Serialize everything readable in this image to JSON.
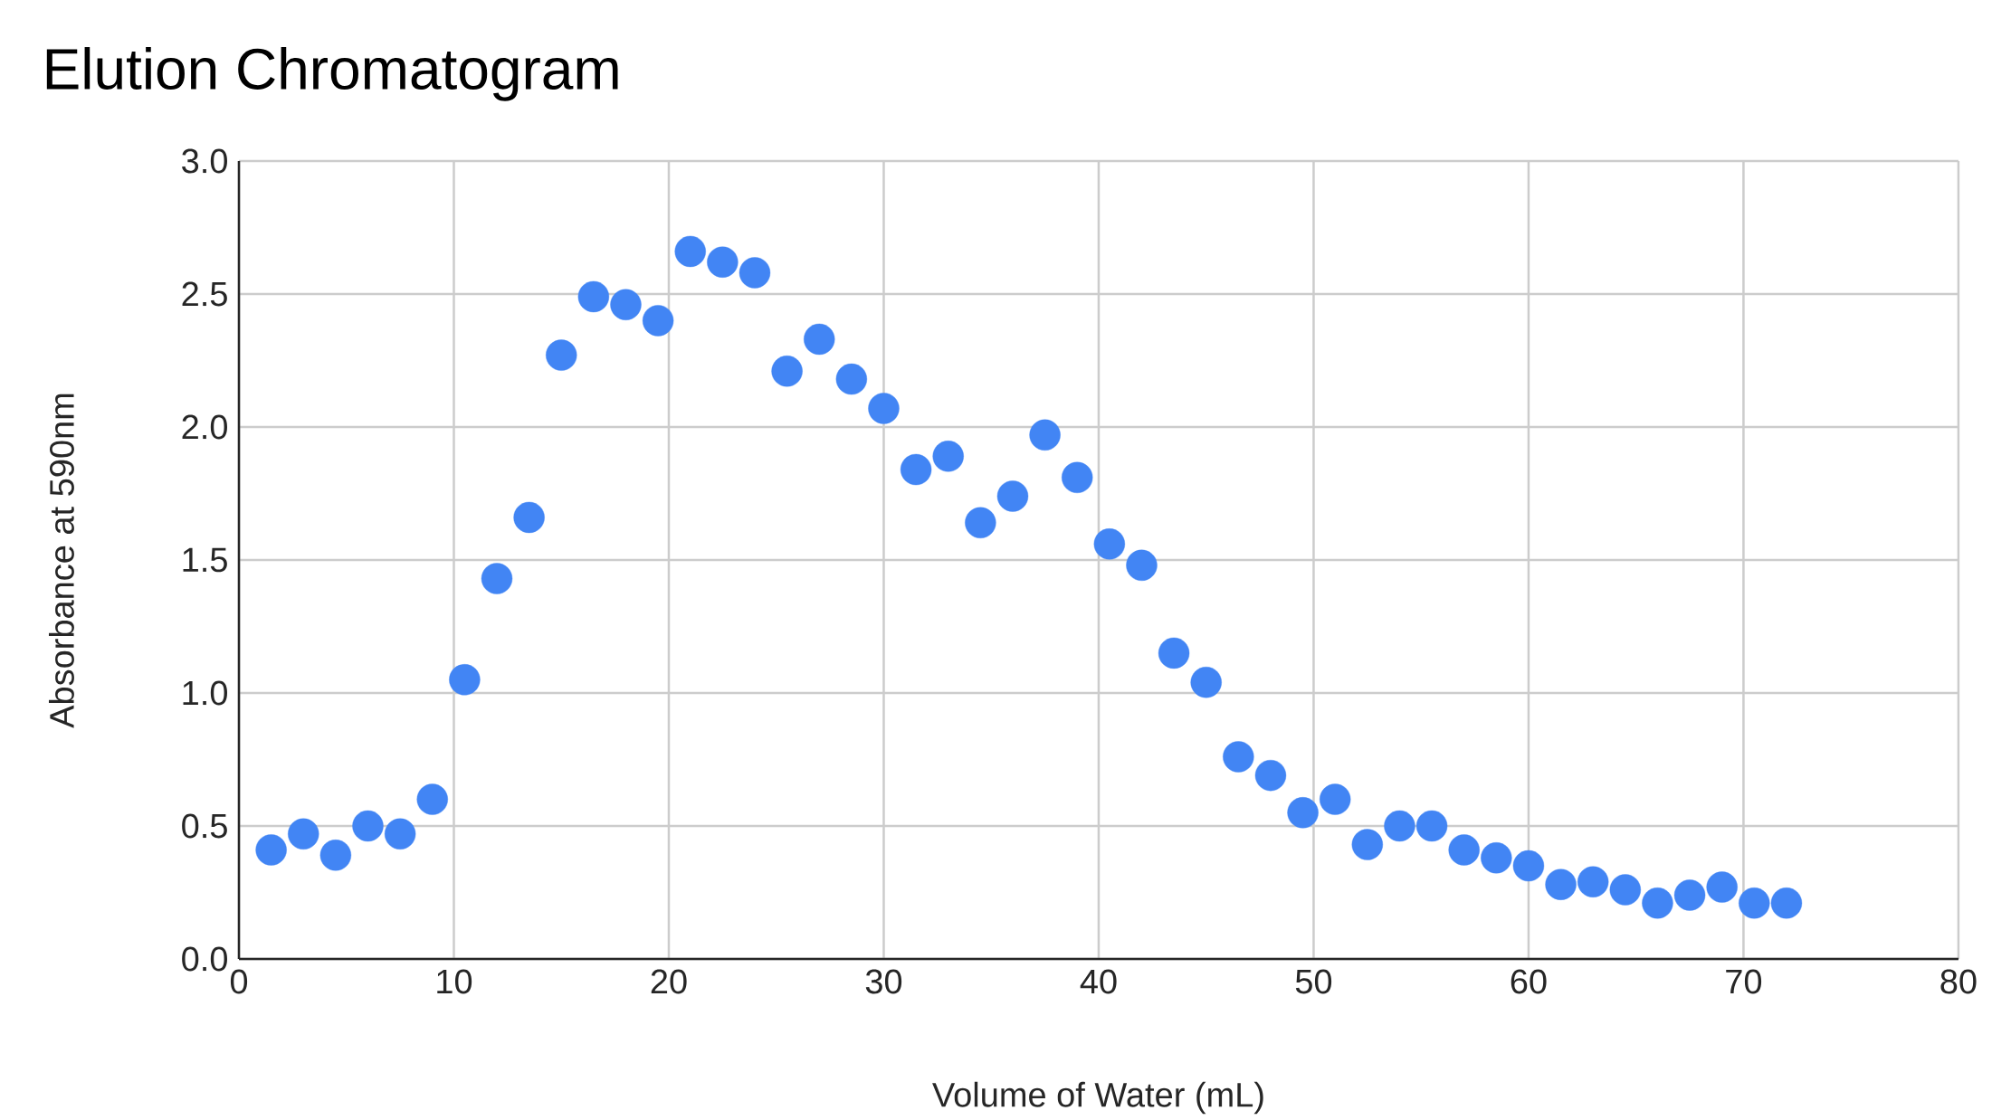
{
  "chart_data": {
    "type": "scatter",
    "title": "Elution Chromatogram",
    "xlabel": "Volume of Water (mL)",
    "ylabel": "Absorbance at 590nm",
    "x": [
      1.5,
      3,
      4.5,
      6,
      7.5,
      9,
      10.5,
      12,
      13.5,
      15,
      16.5,
      18,
      19.5,
      21,
      22.5,
      24,
      25.5,
      27,
      28.5,
      30,
      31.5,
      33,
      34.5,
      36,
      37.5,
      39,
      40.5,
      42,
      43.5,
      45,
      46.5,
      48,
      49.5,
      51,
      52.5,
      54,
      55.5,
      57,
      58.5,
      60,
      61.5,
      63,
      64.5,
      66,
      67.5,
      69,
      70.5,
      72
    ],
    "values": [
      0.41,
      0.47,
      0.39,
      0.5,
      0.47,
      0.6,
      1.05,
      1.43,
      1.66,
      2.27,
      2.49,
      2.46,
      2.4,
      2.66,
      2.62,
      2.58,
      2.21,
      2.33,
      2.18,
      2.07,
      1.84,
      1.89,
      1.64,
      1.74,
      1.97,
      1.81,
      1.56,
      1.48,
      1.15,
      1.04,
      0.76,
      0.69,
      0.55,
      0.6,
      0.43,
      0.5,
      0.5,
      0.41,
      0.38,
      0.35,
      0.28,
      0.29,
      0.26,
      0.21,
      0.24,
      0.27,
      0.21,
      0.21
    ],
    "color": "#4285f4",
    "marker": "circle",
    "grid": true,
    "xlim": [
      0,
      80
    ],
    "xticks": [
      0,
      10,
      20,
      30,
      40,
      50,
      60,
      70,
      80
    ],
    "ylim": [
      0,
      3
    ],
    "yticks": [
      {
        "value": 0,
        "label": "0.0"
      },
      {
        "value": 0.5,
        "label": "0.5"
      },
      {
        "value": 1,
        "label": "1.0"
      },
      {
        "value": 1.5,
        "label": "1.5"
      },
      {
        "value": 2,
        "label": "2.0"
      },
      {
        "value": 2.5,
        "label": "2.5"
      },
      {
        "value": 3,
        "label": "3.0"
      }
    ]
  }
}
